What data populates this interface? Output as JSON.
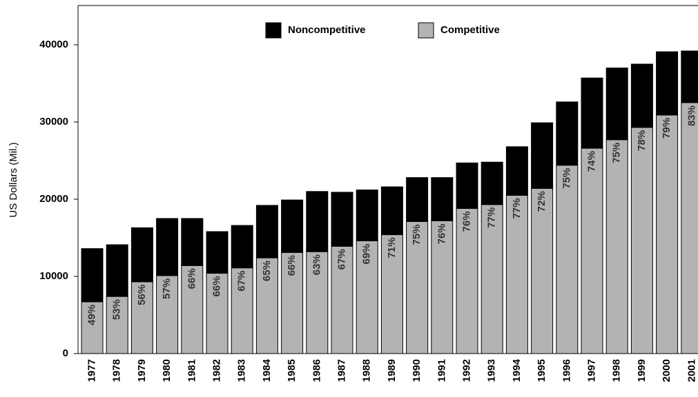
{
  "chart_data": {
    "type": "stacked_bar",
    "y_label": "US Dollars (Mil.)",
    "categories": [
      "1977",
      "1978",
      "1979",
      "1980",
      "1981",
      "1982",
      "1983",
      "1984",
      "1985",
      "1986",
      "1987",
      "1988",
      "1989",
      "1990",
      "1991",
      "1992",
      "1993",
      "1994",
      "1995",
      "1996",
      "1997",
      "1998",
      "1999",
      "2000",
      "2001"
    ],
    "series": [
      {
        "name": "Competitive",
        "color": "#b3b3b3",
        "values": [
          6700,
          7400,
          9300,
          10100,
          11400,
          10400,
          11100,
          12400,
          13100,
          13200,
          13900,
          14600,
          15400,
          17100,
          17200,
          18800,
          19300,
          20500,
          21400,
          24400,
          26600,
          27700,
          29300,
          30900,
          32500
        ],
        "share_labels": [
          "49%",
          "53%",
          "56%",
          "57%",
          "66%",
          "66%",
          "67%",
          "65%",
          "66%",
          "63%",
          "67%",
          "69%",
          "71%",
          "75%",
          "76%",
          "76%",
          "77%",
          "77%",
          "72%",
          "75%",
          "74%",
          "75%",
          "78%",
          "79%",
          "83%"
        ]
      },
      {
        "name": "Noncompetitive",
        "color": "#000000",
        "values": [
          6900,
          6700,
          7000,
          7400,
          6100,
          5400,
          5500,
          6800,
          6800,
          7800,
          7000,
          6600,
          6200,
          5700,
          5600,
          5900,
          5500,
          6300,
          8500,
          8200,
          9100,
          9300,
          8200,
          8200,
          6700
        ]
      }
    ],
    "ylim": [
      0,
      45000
    ],
    "yticks": [
      0,
      10000,
      20000,
      30000,
      40000
    ]
  }
}
